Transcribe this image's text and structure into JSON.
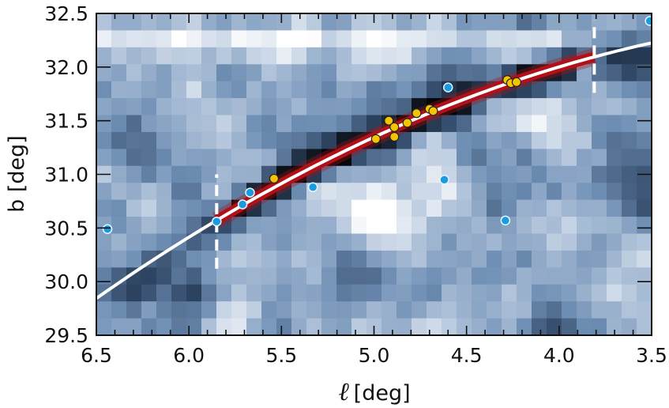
{
  "chart_data": {
    "type": "heatmap",
    "overlay_types": [
      "scatter",
      "line"
    ],
    "xlabel_symbol": "ℓ",
    "xlabel_unit": "[deg]",
    "ylabel": "b [deg]",
    "xlim": [
      6.5,
      3.5
    ],
    "ylim": [
      29.5,
      32.5
    ],
    "x_reversed": true,
    "xticks": [
      "6.5",
      "6.0",
      "5.5",
      "5.0",
      "4.5",
      "4.0",
      "3.5"
    ],
    "yticks": [
      "29.5",
      "30.0",
      "30.5",
      "31.0",
      "31.5",
      "32.0",
      "32.5"
    ],
    "grid": false,
    "colormap": [
      "#ffffff",
      "#b8c9de",
      "#6f8fb5",
      "#2e4563",
      "#050608"
    ],
    "fit_curve": {
      "color": "#ffffff",
      "points": [
        [
          6.5,
          29.85
        ],
        [
          5.85,
          30.56
        ],
        [
          4.9,
          31.43
        ],
        [
          3.81,
          32.1
        ],
        [
          3.5,
          32.22
        ]
      ]
    },
    "fit_band": {
      "color": "#b01018",
      "l_range": [
        5.85,
        3.81
      ]
    },
    "dashed_markers": [
      {
        "l": 5.85,
        "b_range": [
          30.12,
          31.0
        ]
      },
      {
        "l": 3.81,
        "b_range": [
          31.76,
          32.44
        ]
      }
    ],
    "series": [
      {
        "color": "#1a9be0",
        "points": [
          [
            6.44,
            30.49
          ],
          [
            5.85,
            30.56
          ],
          [
            5.71,
            30.72
          ],
          [
            5.67,
            30.83
          ],
          [
            5.33,
            30.88
          ],
          [
            4.6,
            31.81
          ],
          [
            4.62,
            30.95
          ],
          [
            4.29,
            30.57
          ],
          [
            3.51,
            32.43
          ]
        ]
      },
      {
        "color": "#f5c400",
        "points": [
          [
            5.54,
            30.96
          ],
          [
            4.99,
            31.33
          ],
          [
            4.92,
            31.5
          ],
          [
            4.89,
            31.44
          ],
          [
            4.89,
            31.35
          ],
          [
            4.82,
            31.48
          ],
          [
            4.77,
            31.57
          ],
          [
            4.7,
            31.61
          ],
          [
            4.68,
            31.59
          ],
          [
            4.28,
            31.88
          ],
          [
            4.26,
            31.85
          ],
          [
            4.23,
            31.86
          ]
        ]
      }
    ]
  }
}
